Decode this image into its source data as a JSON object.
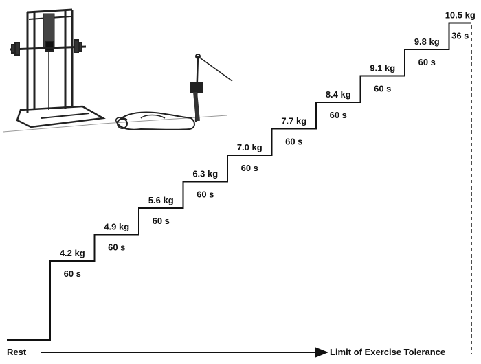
{
  "steps": [
    {
      "load": "4.2 kg",
      "duration": "60 s"
    },
    {
      "load": "4.9 kg",
      "duration": "60 s"
    },
    {
      "load": "5.6 kg",
      "duration": "60 s"
    },
    {
      "load": "6.3 kg",
      "duration": "60 s"
    },
    {
      "load": "7.0 kg",
      "duration": "60 s"
    },
    {
      "load": "7.7 kg",
      "duration": "60 s"
    },
    {
      "load": "8.4 kg",
      "duration": "60 s"
    },
    {
      "load": "9.1 kg",
      "duration": "60 s"
    },
    {
      "load": "9.8 kg",
      "duration": "60 s"
    },
    {
      "load": "10.5 kg",
      "duration": "36 s"
    }
  ],
  "axis": {
    "start_label": "Rest",
    "end_label": "Limit of Exercise Tolerance"
  },
  "illustration": {
    "icon": "cable-pulley-machine-supine-person-icon"
  }
}
